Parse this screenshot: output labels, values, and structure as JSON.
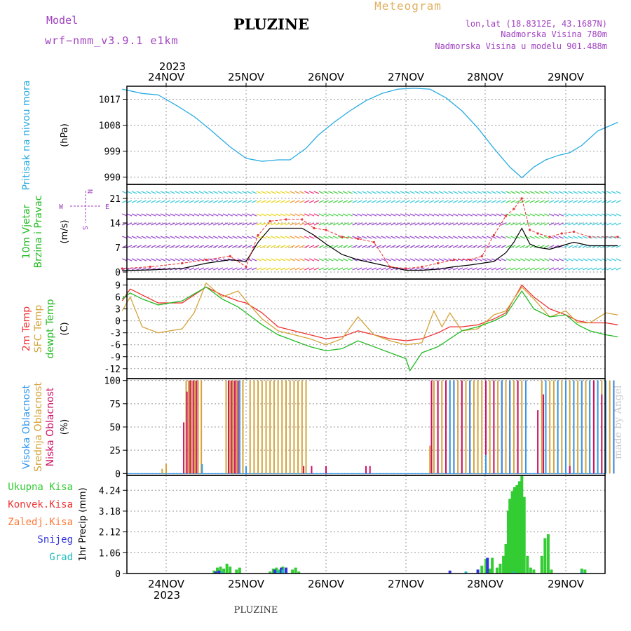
{
  "header": {
    "model_label": "Model",
    "model_name": "wrf−nmm_v3.9.1  e1km",
    "location_title": "PLUZINE",
    "meteogram_title": "Meteogram",
    "lonlat": "lon,lat (18.8312E, 43.1687N)",
    "elevation": "Nadmorska Visina 780m",
    "model_elevation": "Nadmorska Visina u modelu 901.488m",
    "year_top": "2023",
    "footer_location": "PLUZINE",
    "credit": "made by Angel"
  },
  "colors": {
    "pressure": "#29abe2",
    "temp2m": "#ee3333",
    "sfc_temp": "#d4a33a",
    "dewpoint": "#22bb22",
    "wind_speed": "#000000",
    "gust": "#ee3333",
    "cloud_high": "#3399ee",
    "cloud_mid": "#d4a33a",
    "cloud_low": "#cc1166",
    "precip_total": "#33cc33",
    "precip_conv": "#ee3333",
    "precip_freezing": "#ff7733",
    "precip_snow": "#3333dd",
    "precip_hail": "#22bbbb",
    "purple_label": "#a040c0"
  },
  "chart_data": [
    {
      "type": "line",
      "panel": "pressure",
      "y_label_left": "Pritisak na nivou mora",
      "y_unit": "(hPa)",
      "ylim": [
        987.5,
        1021.5
      ],
      "yticks": [
        990,
        999,
        1008,
        1017
      ],
      "x_axis_days": [
        "24NOV",
        "25NOV",
        "26NOV",
        "27NOV",
        "28NOV",
        "29NOV"
      ],
      "x_range_days": [
        -0.55,
        5.65
      ],
      "series": [
        {
          "x": [
            -0.55,
            -0.3,
            -0.1,
            0.15,
            0.35,
            0.55,
            0.8,
            1.0,
            1.2,
            1.4,
            1.55,
            1.75,
            1.9,
            2.1,
            2.3,
            2.5,
            2.7,
            2.9,
            3.1,
            3.3,
            3.5,
            3.7,
            3.9,
            4.1,
            4.3,
            4.45,
            4.6,
            4.75,
            4.9,
            5.05,
            5.2,
            5.4,
            5.65
          ],
          "values": [
            1020.5,
            1019.0,
            1018.5,
            1014.5,
            1011.0,
            1006.5,
            1000.5,
            996.5,
            995.5,
            996.0,
            996.0,
            1000.0,
            1004.5,
            1009.0,
            1013.0,
            1016.5,
            1019.0,
            1020.5,
            1020.8,
            1020.5,
            1017.5,
            1013.0,
            1007.0,
            1000.0,
            993.5,
            989.8,
            993.5,
            996.0,
            997.5,
            998.5,
            1001.0,
            1006.0,
            1009.0
          ]
        }
      ]
    },
    {
      "type": "line",
      "panel": "wind",
      "y_label_left": "10m Vjetar",
      "y_label_left2": "Brzina i Pravac",
      "y_unit": "(m/s)",
      "compass": {
        "n": "N",
        "s": "S",
        "e": "E",
        "w": "W"
      },
      "ylim": [
        -2,
        25
      ],
      "yticks": [
        0,
        7,
        14,
        21
      ],
      "x_range_days": [
        -0.55,
        5.65
      ],
      "series": [
        {
          "name_ref": "speed",
          "x": [
            -0.55,
            -0.2,
            0.2,
            0.5,
            0.8,
            1.0,
            1.15,
            1.3,
            1.5,
            1.7,
            1.85,
            2.0,
            2.2,
            2.4,
            2.6,
            2.8,
            3.0,
            3.2,
            3.4,
            3.6,
            3.8,
            3.95,
            4.1,
            4.25,
            4.35,
            4.45,
            4.55,
            4.65,
            4.8,
            4.95,
            5.1,
            5.3,
            5.65
          ],
          "values": [
            0.4,
            0.6,
            1.0,
            2.5,
            3.5,
            3.0,
            8.5,
            12.5,
            12.5,
            12.5,
            10.5,
            8.0,
            5.0,
            3.5,
            2.5,
            1.5,
            0.5,
            0.5,
            0.8,
            1.5,
            2.0,
            2.5,
            3.0,
            5.5,
            8.5,
            12.5,
            8.0,
            7.0,
            6.5,
            7.5,
            8.5,
            7.5,
            7.5
          ]
        },
        {
          "name_ref": "gust",
          "x": [
            -0.55,
            -0.2,
            0.2,
            0.5,
            0.8,
            1.0,
            1.15,
            1.3,
            1.5,
            1.7,
            1.85,
            2.0,
            2.2,
            2.4,
            2.6,
            2.8,
            3.0,
            3.2,
            3.4,
            3.6,
            3.8,
            3.95,
            4.1,
            4.25,
            4.35,
            4.45,
            4.55,
            4.65,
            4.8,
            4.95,
            5.1,
            5.3,
            5.65
          ],
          "values": [
            1.0,
            1.5,
            2.5,
            3.5,
            4.5,
            1.5,
            10.5,
            14.5,
            15.0,
            15.0,
            12.5,
            12.0,
            10.0,
            9.5,
            8.5,
            1.5,
            1.0,
            1.5,
            2.5,
            3.5,
            3.5,
            4.5,
            10.5,
            16.0,
            18.0,
            21.0,
            12.0,
            11.0,
            10.0,
            11.0,
            11.5,
            10.0,
            10.0
          ]
        }
      ]
    },
    {
      "type": "line",
      "panel": "temperature",
      "y_label_left": "2m Temp",
      "y_label_left2": "SFC Temp",
      "y_label_left3": "dewpt Temp",
      "y_unit": "(C)",
      "ylim": [
        -14.5,
        10.5
      ],
      "yticks": [
        9,
        6,
        3,
        0,
        -3,
        -6,
        -9,
        -12
      ],
      "x_range_days": [
        -0.55,
        5.65
      ],
      "series": [
        {
          "name_ref": "2m",
          "x": [
            -0.55,
            -0.45,
            -0.3,
            -0.1,
            0.2,
            0.5,
            0.7,
            0.9,
            1.0,
            1.2,
            1.4,
            1.6,
            1.8,
            2.0,
            2.2,
            2.4,
            2.6,
            2.8,
            3.0,
            3.2,
            3.4,
            3.55,
            3.7,
            3.9,
            4.1,
            4.25,
            4.45,
            4.6,
            4.8,
            5.0,
            5.15,
            5.3,
            5.5,
            5.65
          ],
          "values": [
            5.0,
            8.0,
            6.5,
            4.5,
            4.5,
            8.5,
            6.5,
            5.0,
            4.5,
            2.0,
            -1.5,
            -2.5,
            -3.5,
            -4.5,
            -4.0,
            -2.5,
            -3.5,
            -4.5,
            -5.0,
            -4.5,
            -3.0,
            -1.5,
            -1.5,
            -1.0,
            0.5,
            2.0,
            9.0,
            6.0,
            3.0,
            1.5,
            0.0,
            -0.5,
            -0.5,
            -1.0
          ]
        },
        {
          "name_ref": "sfc",
          "x": [
            -0.55,
            -0.45,
            -0.3,
            -0.1,
            0.2,
            0.35,
            0.5,
            0.7,
            0.9,
            1.0,
            1.2,
            1.4,
            1.6,
            1.8,
            2.0,
            2.2,
            2.4,
            2.6,
            2.8,
            3.0,
            3.2,
            3.35,
            3.45,
            3.55,
            3.7,
            3.9,
            4.1,
            4.25,
            4.45,
            4.6,
            4.8,
            5.0,
            5.15,
            5.3,
            5.5,
            5.65
          ],
          "values": [
            2.5,
            6.0,
            -1.5,
            -3.0,
            -2.0,
            2.0,
            9.5,
            6.0,
            7.5,
            5.0,
            0.5,
            -2.5,
            -3.5,
            -4.5,
            -6.0,
            -4.5,
            1.0,
            -3.5,
            -5.0,
            -6.0,
            -5.5,
            2.5,
            -1.5,
            2.0,
            -2.5,
            -2.0,
            1.5,
            2.5,
            8.5,
            5.5,
            1.0,
            2.5,
            -0.5,
            -0.5,
            2.0,
            1.5
          ]
        },
        {
          "name_ref": "dewpt",
          "x": [
            -0.55,
            -0.45,
            -0.3,
            -0.1,
            0.2,
            0.5,
            0.7,
            0.9,
            1.0,
            1.2,
            1.4,
            1.6,
            1.8,
            2.0,
            2.2,
            2.4,
            2.6,
            2.8,
            3.0,
            3.05,
            3.2,
            3.4,
            3.55,
            3.7,
            3.9,
            4.1,
            4.25,
            4.45,
            4.6,
            4.8,
            5.0,
            5.15,
            5.3,
            5.5,
            5.65
          ],
          "values": [
            5.5,
            7.0,
            5.5,
            4.0,
            5.0,
            8.5,
            5.5,
            3.5,
            2.0,
            -1.0,
            -3.5,
            -5.0,
            -6.5,
            -7.5,
            -7.0,
            -5.0,
            -6.5,
            -8.0,
            -9.5,
            -12.5,
            -8.0,
            -6.5,
            -4.5,
            -2.5,
            -1.5,
            0.0,
            1.5,
            7.5,
            3.0,
            1.0,
            1.5,
            -1.0,
            -2.5,
            -3.5,
            -4.0
          ]
        }
      ]
    },
    {
      "type": "bar",
      "panel": "clouds",
      "y_label_left": "Visoka Oblacnost",
      "y_label_left2": "Srednja Oblacnost",
      "y_label_left3": "Niska Oblacnost",
      "y_unit": "(%)",
      "ylim": [
        -2,
        102
      ],
      "yticks": [
        0,
        25,
        50,
        75,
        100
      ],
      "x_range_days": [
        -0.55,
        5.65
      ],
      "series": [
        {
          "name_ref": "mid",
          "x": [
            -0.05,
            0.0,
            0.25,
            0.28,
            0.32,
            0.36,
            0.4,
            0.44,
            0.75,
            0.8,
            0.84,
            0.88,
            0.92,
            0.96,
            1.05,
            1.1,
            1.15,
            1.2,
            1.25,
            1.3,
            1.35,
            1.4,
            1.45,
            1.5,
            1.55,
            1.6,
            1.65,
            1.7,
            1.75,
            3.3,
            3.35,
            3.4,
            3.45,
            3.5,
            3.55,
            3.6,
            3.65,
            3.7,
            3.75,
            3.8,
            3.85,
            3.9,
            3.95,
            4.0,
            4.05,
            4.1,
            4.15,
            4.2,
            4.25,
            4.3,
            4.35,
            4.4,
            4.45,
            4.5,
            4.7,
            4.75,
            4.8,
            4.85,
            4.9,
            4.95,
            5.0,
            5.05,
            5.1,
            5.15,
            5.2,
            5.25,
            5.3,
            5.35,
            5.4,
            5.45,
            5.5,
            5.55,
            5.6
          ],
          "values": [
            5,
            10,
            100,
            100,
            100,
            100,
            100,
            100,
            100,
            100,
            100,
            100,
            100,
            100,
            100,
            100,
            100,
            100,
            100,
            100,
            100,
            100,
            100,
            100,
            100,
            100,
            100,
            100,
            100,
            30,
            100,
            100,
            100,
            100,
            100,
            100,
            100,
            100,
            100,
            100,
            100,
            100,
            100,
            100,
            100,
            100,
            100,
            100,
            100,
            100,
            100,
            100,
            100,
            100,
            100,
            100,
            100,
            100,
            100,
            100,
            100,
            100,
            100,
            100,
            100,
            100,
            100,
            100,
            100,
            100,
            100,
            100,
            100
          ]
        },
        {
          "name_ref": "low",
          "x": [
            0.22,
            0.26,
            0.3,
            0.34,
            0.38,
            0.78,
            0.82,
            0.86,
            0.9,
            1.72,
            1.82,
            2.0,
            2.5,
            2.55,
            3.32,
            3.4,
            3.5,
            3.6,
            3.7,
            3.8,
            4.0,
            4.1,
            4.2,
            4.3,
            4.4,
            4.5,
            4.65,
            4.72,
            5.05,
            5.35,
            5.45,
            5.6
          ],
          "values": [
            55,
            88,
            100,
            100,
            100,
            100,
            100,
            100,
            100,
            8,
            8,
            8,
            8,
            8,
            100,
            100,
            100,
            100,
            100,
            100,
            100,
            100,
            100,
            100,
            100,
            100,
            68,
            85,
            8,
            100,
            85,
            100
          ]
        },
        {
          "name_ref": "high",
          "x": [
            0.45,
            0.92,
            1.0,
            3.55,
            3.6,
            3.8,
            4.0,
            4.2,
            4.3,
            4.5,
            4.75,
            4.9,
            5.0,
            5.1,
            5.2,
            5.3,
            5.4,
            5.5,
            5.6
          ],
          "values": [
            10,
            100,
            8,
            100,
            100,
            100,
            20,
            100,
            100,
            100,
            100,
            100,
            100,
            100,
            100,
            100,
            100,
            100,
            100
          ]
        }
      ]
    },
    {
      "type": "bar",
      "panel": "precip",
      "y_label_left": "Ukupna Kisa",
      "y_label_left2": "Konvek.Kisa",
      "y_label_left3": "Zaledj.Kisa",
      "y_label_left4": "Snijeg",
      "y_label_left5": "Grad",
      "y_unit": "1hr Precip (mm)",
      "ylim": [
        0,
        5.0
      ],
      "yticks": [
        0,
        1.06,
        2.12,
        3.18,
        4.24
      ],
      "x_range_days": [
        -0.55,
        5.65
      ],
      "series": [
        {
          "name_ref": "total",
          "x": [
            0.6,
            0.64,
            0.68,
            0.72,
            0.76,
            0.8,
            0.88,
            0.92,
            1.3,
            1.34,
            1.38,
            1.42,
            1.46,
            1.5,
            1.58,
            1.62,
            1.66,
            3.9,
            3.95,
            4.0,
            4.05,
            4.08,
            4.14,
            4.18,
            4.22,
            4.25,
            4.28,
            4.3,
            4.33,
            4.36,
            4.39,
            4.42,
            4.45,
            4.48,
            4.52,
            4.56,
            4.6,
            4.7,
            4.74,
            4.78,
            4.82,
            5.2,
            5.24
          ],
          "values": [
            0.15,
            0.3,
            0.35,
            0.25,
            0.5,
            0.35,
            0.2,
            0.3,
            0.1,
            0.25,
            0.3,
            0.2,
            0.35,
            0.3,
            0.2,
            0.3,
            0.1,
            0.2,
            0.4,
            0.75,
            0.25,
            0.8,
            0.3,
            0.5,
            0.9,
            1.5,
            3.2,
            3.8,
            4.2,
            4.4,
            4.5,
            4.7,
            5.0,
            3.9,
            0.9,
            0.3,
            0.2,
            0.9,
            1.8,
            2.0,
            0.2,
            0.25,
            0.2
          ]
        },
        {
          "name_ref": "snow",
          "x": [
            0.62,
            0.66,
            1.36,
            1.44,
            1.5,
            3.55,
            3.9,
            4.02
          ],
          "values": [
            0.1,
            0.15,
            0.2,
            0.3,
            0.3,
            0.15,
            0.2,
            0.8
          ]
        },
        {
          "name_ref": "hail",
          "x": [
            0.7,
            1.4,
            1.46,
            3.75,
            4.35,
            5.2
          ],
          "values": [
            0.1,
            0.15,
            0.2,
            0.1,
            0.1,
            0.1
          ]
        }
      ]
    }
  ]
}
